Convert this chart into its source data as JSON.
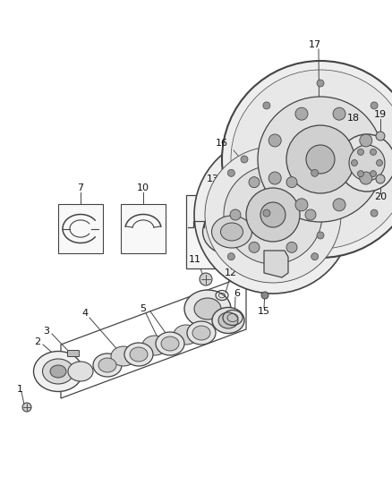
{
  "bg_color": "#ffffff",
  "line_color": "#444444",
  "figsize": [
    4.38,
    5.33
  ],
  "dpi": 100
}
